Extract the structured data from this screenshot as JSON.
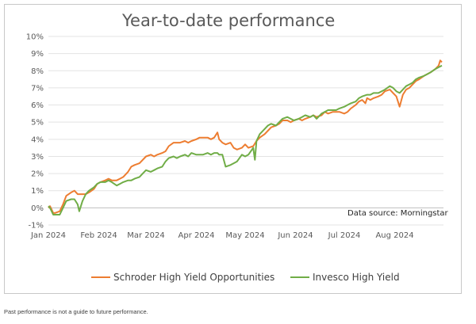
{
  "page": {
    "footnote": "Past performance is not a guide to future performance."
  },
  "chart_data": {
    "type": "line",
    "title": "Year-to-date performance",
    "source_note": "Data source: Morningstar",
    "xlabel": "",
    "ylabel": "",
    "x_tick_labels": [
      "Jan 2024",
      "Feb 2024",
      "Mar 2024",
      "Apr 2024",
      "May 2024",
      "Jun 2024",
      "Jul 2024",
      "Aug 2024"
    ],
    "y_tick_labels": [
      "-1%",
      "0%",
      "1%",
      "2%",
      "3%",
      "4%",
      "5%",
      "6%",
      "7%",
      "8%",
      "9%",
      "10%"
    ],
    "ylim": [
      -1,
      10
    ],
    "xlim": [
      "2024-01-01",
      "2024-08-31"
    ],
    "grid": "horizontal",
    "legend_position": "bottom",
    "series": [
      {
        "name": "Schroder High Yield Opportunities",
        "color": "#ed7d31",
        "points": [
          [
            "2024-01-01",
            0.0
          ],
          [
            "2024-01-02",
            0.1
          ],
          [
            "2024-01-03",
            -0.1
          ],
          [
            "2024-01-04",
            -0.3
          ],
          [
            "2024-01-05",
            -0.3
          ],
          [
            "2024-01-08",
            -0.2
          ],
          [
            "2024-01-10",
            0.2
          ],
          [
            "2024-01-12",
            0.7
          ],
          [
            "2024-01-15",
            0.9
          ],
          [
            "2024-01-17",
            1.0
          ],
          [
            "2024-01-19",
            0.8
          ],
          [
            "2024-01-22",
            0.8
          ],
          [
            "2024-01-24",
            0.8
          ],
          [
            "2024-01-26",
            0.9
          ],
          [
            "2024-01-29",
            1.1
          ],
          [
            "2024-01-31",
            1.4
          ],
          [
            "2024-02-02",
            1.5
          ],
          [
            "2024-02-05",
            1.6
          ],
          [
            "2024-02-07",
            1.7
          ],
          [
            "2024-02-09",
            1.6
          ],
          [
            "2024-02-12",
            1.6
          ],
          [
            "2024-02-14",
            1.7
          ],
          [
            "2024-02-16",
            1.8
          ],
          [
            "2024-02-19",
            2.1
          ],
          [
            "2024-02-21",
            2.4
          ],
          [
            "2024-02-23",
            2.5
          ],
          [
            "2024-02-26",
            2.6
          ],
          [
            "2024-02-28",
            2.8
          ],
          [
            "2024-03-01",
            3.0
          ],
          [
            "2024-03-04",
            3.1
          ],
          [
            "2024-03-06",
            3.0
          ],
          [
            "2024-03-08",
            3.1
          ],
          [
            "2024-03-11",
            3.2
          ],
          [
            "2024-03-13",
            3.3
          ],
          [
            "2024-03-15",
            3.6
          ],
          [
            "2024-03-18",
            3.8
          ],
          [
            "2024-03-20",
            3.8
          ],
          [
            "2024-03-22",
            3.8
          ],
          [
            "2024-03-25",
            3.9
          ],
          [
            "2024-03-27",
            3.8
          ],
          [
            "2024-03-29",
            3.9
          ],
          [
            "2024-04-01",
            4.0
          ],
          [
            "2024-04-03",
            4.1
          ],
          [
            "2024-04-05",
            4.1
          ],
          [
            "2024-04-08",
            4.1
          ],
          [
            "2024-04-10",
            4.0
          ],
          [
            "2024-04-12",
            4.1
          ],
          [
            "2024-04-14",
            4.4
          ],
          [
            "2024-04-15",
            4.0
          ],
          [
            "2024-04-17",
            3.8
          ],
          [
            "2024-04-19",
            3.7
          ],
          [
            "2024-04-22",
            3.8
          ],
          [
            "2024-04-24",
            3.5
          ],
          [
            "2024-04-26",
            3.4
          ],
          [
            "2024-04-29",
            3.5
          ],
          [
            "2024-05-01",
            3.7
          ],
          [
            "2024-05-03",
            3.5
          ],
          [
            "2024-05-06",
            3.6
          ],
          [
            "2024-05-08",
            3.9
          ],
          [
            "2024-05-10",
            4.1
          ],
          [
            "2024-05-13",
            4.3
          ],
          [
            "2024-05-15",
            4.5
          ],
          [
            "2024-05-17",
            4.7
          ],
          [
            "2024-05-20",
            4.8
          ],
          [
            "2024-05-22",
            4.9
          ],
          [
            "2024-05-24",
            5.1
          ],
          [
            "2024-05-27",
            5.1
          ],
          [
            "2024-05-29",
            5.0
          ],
          [
            "2024-05-31",
            5.1
          ],
          [
            "2024-06-03",
            5.2
          ],
          [
            "2024-06-05",
            5.1
          ],
          [
            "2024-06-07",
            5.2
          ],
          [
            "2024-06-10",
            5.3
          ],
          [
            "2024-06-12",
            5.4
          ],
          [
            "2024-06-14",
            5.3
          ],
          [
            "2024-06-17",
            5.4
          ],
          [
            "2024-06-19",
            5.6
          ],
          [
            "2024-06-21",
            5.5
          ],
          [
            "2024-06-24",
            5.6
          ],
          [
            "2024-06-26",
            5.6
          ],
          [
            "2024-06-28",
            5.6
          ],
          [
            "2024-07-01",
            5.5
          ],
          [
            "2024-07-03",
            5.6
          ],
          [
            "2024-07-05",
            5.8
          ],
          [
            "2024-07-08",
            6.0
          ],
          [
            "2024-07-10",
            6.2
          ],
          [
            "2024-07-12",
            6.3
          ],
          [
            "2024-07-14",
            6.1
          ],
          [
            "2024-07-15",
            6.4
          ],
          [
            "2024-07-17",
            6.3
          ],
          [
            "2024-07-19",
            6.4
          ],
          [
            "2024-07-22",
            6.5
          ],
          [
            "2024-07-24",
            6.6
          ],
          [
            "2024-07-26",
            6.8
          ],
          [
            "2024-07-29",
            6.9
          ],
          [
            "2024-07-31",
            6.7
          ],
          [
            "2024-08-02",
            6.5
          ],
          [
            "2024-08-04",
            5.9
          ],
          [
            "2024-08-06",
            6.6
          ],
          [
            "2024-08-08",
            6.9
          ],
          [
            "2024-08-10",
            7.0
          ],
          [
            "2024-08-12",
            7.2
          ],
          [
            "2024-08-14",
            7.4
          ],
          [
            "2024-08-16",
            7.5
          ],
          [
            "2024-08-19",
            7.7
          ],
          [
            "2024-08-21",
            7.8
          ],
          [
            "2024-08-23",
            7.9
          ],
          [
            "2024-08-26",
            8.1
          ],
          [
            "2024-08-28",
            8.3
          ],
          [
            "2024-08-29",
            8.6
          ],
          [
            "2024-08-30",
            8.5
          ]
        ]
      },
      {
        "name": "Invesco High Yield",
        "color": "#70ad47",
        "points": [
          [
            "2024-01-01",
            0.1
          ],
          [
            "2024-01-02",
            0.0
          ],
          [
            "2024-01-03",
            -0.2
          ],
          [
            "2024-01-04",
            -0.4
          ],
          [
            "2024-01-05",
            -0.4
          ],
          [
            "2024-01-08",
            -0.4
          ],
          [
            "2024-01-10",
            0.0
          ],
          [
            "2024-01-12",
            0.4
          ],
          [
            "2024-01-15",
            0.5
          ],
          [
            "2024-01-17",
            0.5
          ],
          [
            "2024-01-19",
            0.2
          ],
          [
            "2024-01-20",
            -0.2
          ],
          [
            "2024-01-22",
            0.4
          ],
          [
            "2024-01-24",
            0.8
          ],
          [
            "2024-01-26",
            1.0
          ],
          [
            "2024-01-29",
            1.2
          ],
          [
            "2024-01-31",
            1.4
          ],
          [
            "2024-02-02",
            1.5
          ],
          [
            "2024-02-05",
            1.5
          ],
          [
            "2024-02-07",
            1.6
          ],
          [
            "2024-02-09",
            1.5
          ],
          [
            "2024-02-12",
            1.3
          ],
          [
            "2024-02-14",
            1.4
          ],
          [
            "2024-02-16",
            1.5
          ],
          [
            "2024-02-19",
            1.6
          ],
          [
            "2024-02-21",
            1.6
          ],
          [
            "2024-02-23",
            1.7
          ],
          [
            "2024-02-26",
            1.8
          ],
          [
            "2024-02-28",
            2.0
          ],
          [
            "2024-03-01",
            2.2
          ],
          [
            "2024-03-04",
            2.1
          ],
          [
            "2024-03-06",
            2.2
          ],
          [
            "2024-03-08",
            2.3
          ],
          [
            "2024-03-11",
            2.4
          ],
          [
            "2024-03-13",
            2.7
          ],
          [
            "2024-03-15",
            2.9
          ],
          [
            "2024-03-18",
            3.0
          ],
          [
            "2024-03-20",
            2.9
          ],
          [
            "2024-03-22",
            3.0
          ],
          [
            "2024-03-25",
            3.1
          ],
          [
            "2024-03-27",
            3.0
          ],
          [
            "2024-03-29",
            3.2
          ],
          [
            "2024-04-01",
            3.1
          ],
          [
            "2024-04-03",
            3.1
          ],
          [
            "2024-04-05",
            3.1
          ],
          [
            "2024-04-08",
            3.2
          ],
          [
            "2024-04-10",
            3.1
          ],
          [
            "2024-04-12",
            3.2
          ],
          [
            "2024-04-14",
            3.2
          ],
          [
            "2024-04-15",
            3.1
          ],
          [
            "2024-04-17",
            3.1
          ],
          [
            "2024-04-19",
            2.4
          ],
          [
            "2024-04-22",
            2.5
          ],
          [
            "2024-04-24",
            2.6
          ],
          [
            "2024-04-26",
            2.7
          ],
          [
            "2024-04-29",
            3.1
          ],
          [
            "2024-05-01",
            3.0
          ],
          [
            "2024-05-03",
            3.1
          ],
          [
            "2024-05-06",
            3.5
          ],
          [
            "2024-05-07",
            2.8
          ],
          [
            "2024-05-08",
            3.9
          ],
          [
            "2024-05-10",
            4.3
          ],
          [
            "2024-05-13",
            4.6
          ],
          [
            "2024-05-15",
            4.8
          ],
          [
            "2024-05-17",
            4.9
          ],
          [
            "2024-05-20",
            4.8
          ],
          [
            "2024-05-22",
            5.0
          ],
          [
            "2024-05-24",
            5.2
          ],
          [
            "2024-05-27",
            5.3
          ],
          [
            "2024-05-29",
            5.2
          ],
          [
            "2024-05-31",
            5.1
          ],
          [
            "2024-06-03",
            5.2
          ],
          [
            "2024-06-05",
            5.3
          ],
          [
            "2024-06-07",
            5.4
          ],
          [
            "2024-06-10",
            5.3
          ],
          [
            "2024-06-12",
            5.4
          ],
          [
            "2024-06-14",
            5.2
          ],
          [
            "2024-06-17",
            5.5
          ],
          [
            "2024-06-19",
            5.6
          ],
          [
            "2024-06-21",
            5.7
          ],
          [
            "2024-06-24",
            5.7
          ],
          [
            "2024-06-26",
            5.7
          ],
          [
            "2024-06-28",
            5.8
          ],
          [
            "2024-07-01",
            5.9
          ],
          [
            "2024-07-03",
            6.0
          ],
          [
            "2024-07-05",
            6.1
          ],
          [
            "2024-07-08",
            6.2
          ],
          [
            "2024-07-10",
            6.4
          ],
          [
            "2024-07-12",
            6.5
          ],
          [
            "2024-07-15",
            6.6
          ],
          [
            "2024-07-17",
            6.6
          ],
          [
            "2024-07-19",
            6.7
          ],
          [
            "2024-07-22",
            6.7
          ],
          [
            "2024-07-24",
            6.8
          ],
          [
            "2024-07-26",
            6.9
          ],
          [
            "2024-07-29",
            7.1
          ],
          [
            "2024-07-31",
            7.0
          ],
          [
            "2024-08-02",
            6.8
          ],
          [
            "2024-08-04",
            6.7
          ],
          [
            "2024-08-06",
            6.9
          ],
          [
            "2024-08-08",
            7.1
          ],
          [
            "2024-08-10",
            7.2
          ],
          [
            "2024-08-12",
            7.3
          ],
          [
            "2024-08-14",
            7.5
          ],
          [
            "2024-08-16",
            7.6
          ],
          [
            "2024-08-19",
            7.7
          ],
          [
            "2024-08-21",
            7.8
          ],
          [
            "2024-08-23",
            7.9
          ],
          [
            "2024-08-26",
            8.1
          ],
          [
            "2024-08-28",
            8.2
          ],
          [
            "2024-08-30",
            8.3
          ]
        ]
      }
    ]
  }
}
